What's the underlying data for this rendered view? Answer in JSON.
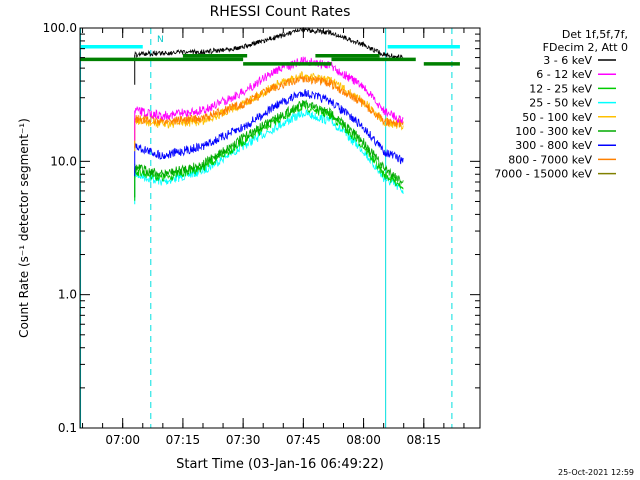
{
  "chart_data": {
    "type": "line",
    "title": "RHESSI Count Rates",
    "xlabel": "Start Time (03-Jan-16 06:49:22)",
    "ylabel": "Count Rate (s⁻¹ detector segment⁻¹)",
    "y_scale": "log",
    "ylim": [
      0.1,
      100.0
    ],
    "xlim": [
      "06:49:22",
      "08:29:00"
    ],
    "x_ticks": [
      "07:00",
      "07:15",
      "07:30",
      "07:45",
      "08:00",
      "08:15"
    ],
    "y_ticks": [
      "0.1",
      "1.0",
      "10.0",
      "100.0"
    ],
    "grid": false,
    "legend_placement": "right, outside plot",
    "legend_header": [
      "Det 1f,5f,7f,",
      "FDecim 2, Att 0"
    ],
    "timestamp": "25-Oct-2021 12:59",
    "annotation_N": "N",
    "shaded_markers": {
      "solid_lines": [
        "06:49:30",
        "08:05:30"
      ],
      "dashed_lines": [
        "07:07:00",
        "08:22:00"
      ]
    },
    "series": [
      {
        "name": "3 - 6 keV",
        "color": "#000000",
        "x": [
          "07:03",
          "07:10",
          "07:20",
          "07:30",
          "07:38",
          "07:45",
          "07:52",
          "08:00",
          "08:05",
          "08:10"
        ],
        "y": [
          63,
          65,
          66,
          72,
          85,
          97,
          92,
          75,
          63,
          60
        ]
      },
      {
        "name": "6 - 12 keV",
        "color": "#ff00ff",
        "x": [
          "07:03",
          "07:10",
          "07:20",
          "07:30",
          "07:38",
          "07:45",
          "07:52",
          "08:00",
          "08:05",
          "08:10"
        ],
        "y": [
          24,
          22,
          24,
          33,
          48,
          57,
          52,
          36,
          24,
          20
        ]
      },
      {
        "name": "12 - 25 keV",
        "color": "#00cc00",
        "x": [
          "07:03",
          "07:10",
          "07:20",
          "07:30",
          "07:38",
          "07:45",
          "07:52",
          "08:00",
          "08:05",
          "08:10"
        ],
        "y": [
          8.5,
          7.5,
          9,
          14,
          20,
          26,
          22,
          13,
          8,
          6.5
        ]
      },
      {
        "name": "25 - 50 keV",
        "color": "#00ffff",
        "x": [
          "07:03",
          "07:10",
          "07:20",
          "07:30",
          "07:38",
          "07:45",
          "07:52",
          "08:00",
          "08:05",
          "08:10"
        ],
        "y": [
          8,
          7,
          8.5,
          13,
          18,
          23,
          20,
          12,
          7.5,
          6
        ]
      },
      {
        "name": "50 - 100 keV",
        "color": "#ffc000",
        "x": [
          "07:03",
          "07:10",
          "07:20",
          "07:30",
          "07:38",
          "07:45",
          "07:52",
          "08:00",
          "08:05",
          "08:10"
        ],
        "y": [
          20,
          19,
          20,
          27,
          37,
          44,
          40,
          28,
          20,
          18
        ]
      },
      {
        "name": "100 - 300 keV",
        "color": "#00aa00",
        "x": [
          "07:03",
          "07:10",
          "07:20",
          "07:30",
          "07:38",
          "07:45",
          "07:52",
          "08:00",
          "08:05",
          "08:10"
        ],
        "y": [
          9,
          8,
          9.5,
          15,
          21,
          27,
          23,
          14,
          9,
          7
        ]
      },
      {
        "name": "300 - 800 keV",
        "color": "#0000ff",
        "x": [
          "07:03",
          "07:10",
          "07:20",
          "07:30",
          "07:38",
          "07:45",
          "07:52",
          "08:00",
          "08:05",
          "08:10"
        ],
        "y": [
          13,
          11,
          13,
          18,
          26,
          33,
          28,
          18,
          12,
          10
        ]
      },
      {
        "name": "800 - 7000 keV",
        "color": "#ff8000",
        "x": [
          "07:03",
          "07:10",
          "07:20",
          "07:30",
          "07:38",
          "07:45",
          "07:52",
          "08:00",
          "08:05",
          "08:10"
        ],
        "y": [
          21,
          20,
          21,
          27,
          36,
          42,
          38,
          27,
          20,
          19
        ]
      },
      {
        "name": "7000 - 15000 keV",
        "color": "#808000",
        "x": [],
        "y": []
      }
    ],
    "status_bars": [
      {
        "color": "#00ffff",
        "segments": [
          [
            "06:49:30",
            "07:05:00"
          ],
          [
            "08:06:00",
            "08:24:00"
          ]
        ],
        "level": 76
      },
      {
        "color": "#008000",
        "segments": [
          [
            "06:49:30",
            "07:30:00"
          ],
          [
            "07:52:00",
            "08:13:00"
          ]
        ],
        "level": 62
      },
      {
        "color": "#008000",
        "segments": [
          [
            "07:15:00",
            "07:31:00"
          ],
          [
            "07:48:00",
            "08:04:00"
          ]
        ],
        "level": 66
      },
      {
        "color": "#008000",
        "segments": [
          [
            "07:30:00",
            "07:52:00"
          ],
          [
            "08:15:00",
            "08:24:00"
          ]
        ],
        "level": 57
      }
    ]
  }
}
